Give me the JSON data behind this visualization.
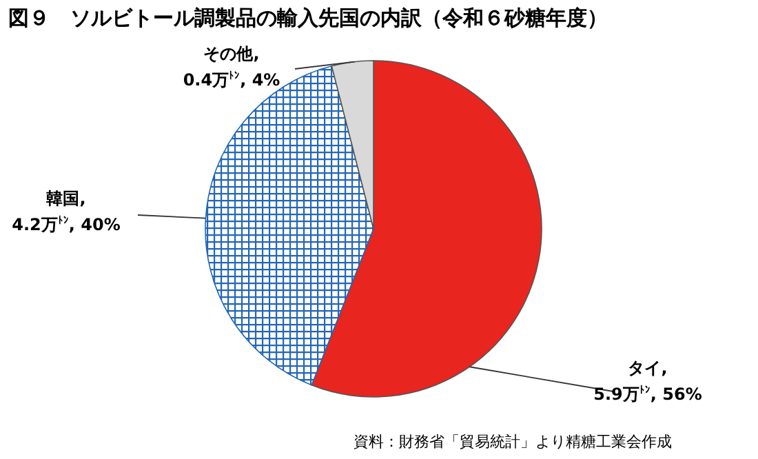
{
  "chart_data": {
    "type": "pie",
    "title": "図９　ソルビトール調製品の輸入先国の内訳（令和６砂糖年度）",
    "categories": [
      "タイ",
      "韓国",
      "その他"
    ],
    "values": [
      56,
      40,
      4
    ],
    "value_labels": [
      ",5.9万$^{ﾄﾝ}$, 56%",
      ",4.2万$^{ﾄﾝ}$, 40%",
      ",0.4万$^{ﾄﾝ}$, 4%"
    ],
    "colors": [
      "#e8251f",
      "#2266b8",
      "#d9d9d9"
    ],
    "annotations": [
      "資料：財務省「貿易統計」より精糖工業会作成"
    ]
  }
}
